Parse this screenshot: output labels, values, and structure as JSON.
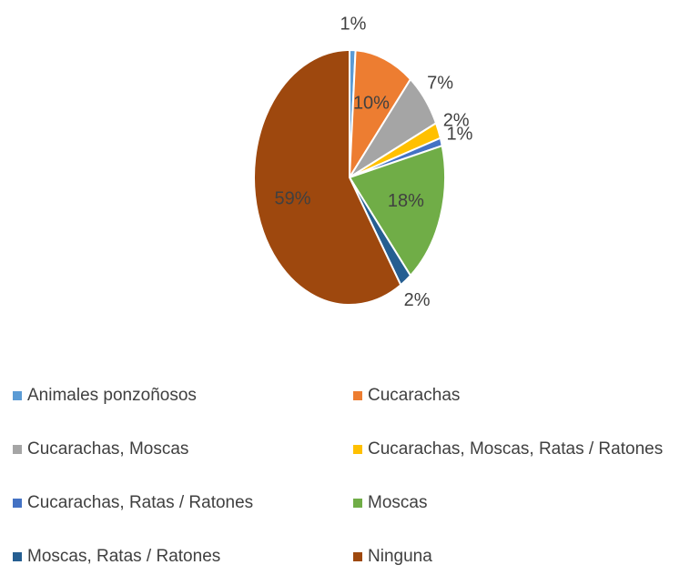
{
  "chart_data": {
    "type": "pie",
    "categories": [
      "Animales ponzoñosos",
      "Cucarachas",
      "Cucarachas, Moscas",
      "Cucarachas, Moscas, Ratas / Ratones",
      "Cucarachas, Ratas / Ratones",
      "Moscas",
      "Moscas, Ratas / Ratones",
      "Ninguna"
    ],
    "values": [
      1,
      10,
      7,
      2,
      1,
      18,
      2,
      59
    ],
    "value_labels": [
      "1%",
      "10%",
      "7%",
      "2%",
      "1%",
      "18%",
      "2%",
      "59%"
    ],
    "colors": [
      "#5b9bd5",
      "#ed7d31",
      "#a5a5a5",
      "#ffc000",
      "#4472c4",
      "#70ad47",
      "#255e91",
      "#9e480e"
    ],
    "legend": "bottom"
  }
}
